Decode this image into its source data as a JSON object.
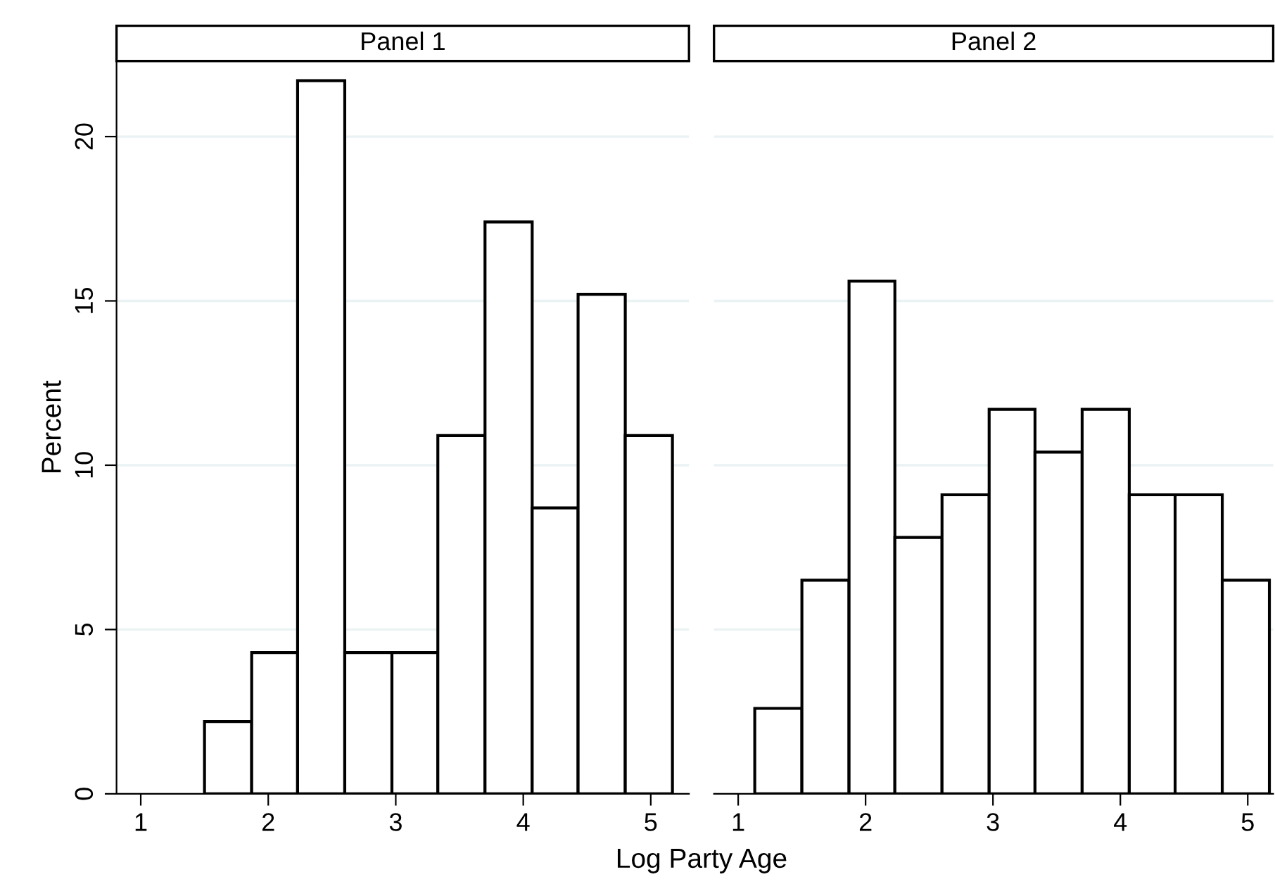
{
  "chart_data": [
    {
      "type": "histogram",
      "title": "Panel 1",
      "xlabel": "Log Party Age",
      "ylabel": "Percent",
      "bins": [
        1.5,
        1.87,
        2.23,
        2.6,
        2.97,
        3.33,
        3.7,
        4.07,
        4.43,
        4.8,
        5.17
      ],
      "values": [
        2.2,
        4.3,
        21.7,
        4.3,
        4.3,
        10.9,
        17.4,
        8.7,
        15.2,
        10.9
      ],
      "color": "#ffffff",
      "xlim": [
        0.81,
        5.3
      ],
      "xticks": [
        1,
        2,
        3,
        4,
        5
      ],
      "ylim": [
        0,
        22.3
      ],
      "yticks": [
        0,
        5,
        10,
        15,
        20
      ],
      "grid": "y"
    },
    {
      "type": "histogram",
      "title": "Panel 2",
      "bins": [
        1.13,
        1.5,
        1.87,
        2.23,
        2.6,
        2.97,
        3.33,
        3.7,
        4.07,
        4.43,
        4.8,
        5.17
      ],
      "values": [
        2.6,
        6.5,
        15.6,
        7.8,
        9.1,
        11.7,
        10.4,
        11.7,
        9.1,
        9.1,
        6.5
      ],
      "color": "#ffffff",
      "xlim": [
        0.81,
        5.2
      ],
      "xticks": [
        1,
        2,
        3,
        4,
        5
      ],
      "ylim": [
        0,
        22.3
      ],
      "yticks": [
        0,
        5,
        10,
        15,
        20
      ],
      "grid": "y",
      "tick_labels": "x"
    }
  ]
}
